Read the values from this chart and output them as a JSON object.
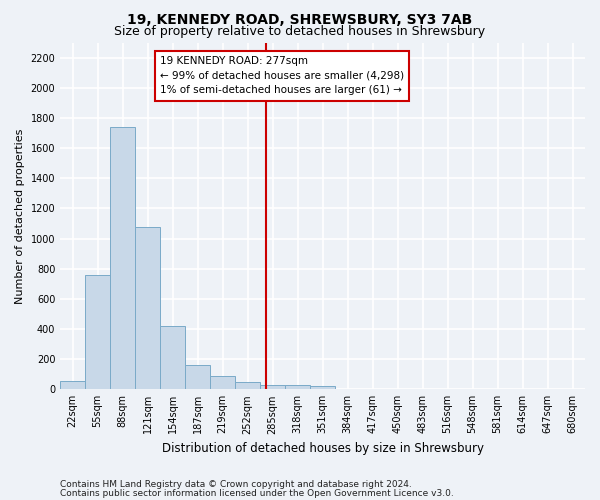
{
  "title": "19, KENNEDY ROAD, SHREWSBURY, SY3 7AB",
  "subtitle": "Size of property relative to detached houses in Shrewsbury",
  "xlabel": "Distribution of detached houses by size in Shrewsbury",
  "ylabel": "Number of detached properties",
  "footnote1": "Contains HM Land Registry data © Crown copyright and database right 2024.",
  "footnote2": "Contains public sector information licensed under the Open Government Licence v3.0.",
  "bin_labels": [
    "22sqm",
    "55sqm",
    "88sqm",
    "121sqm",
    "154sqm",
    "187sqm",
    "219sqm",
    "252sqm",
    "285sqm",
    "318sqm",
    "351sqm",
    "384sqm",
    "417sqm",
    "450sqm",
    "483sqm",
    "516sqm",
    "548sqm",
    "581sqm",
    "614sqm",
    "647sqm",
    "680sqm"
  ],
  "bar_heights": [
    55,
    760,
    1740,
    1075,
    420,
    160,
    85,
    50,
    30,
    30,
    20,
    0,
    0,
    0,
    0,
    0,
    0,
    0,
    0,
    0,
    0
  ],
  "bar_color": "#c8d8e8",
  "bar_edge_color": "#7aaac8",
  "vline_color": "#cc0000",
  "annotation_line1": "19 KENNEDY ROAD: 277sqm",
  "annotation_line2": "← 99% of detached houses are smaller (4,298)",
  "annotation_line3": "1% of semi-detached houses are larger (61) →",
  "ylim": [
    0,
    2300
  ],
  "yticks": [
    0,
    200,
    400,
    600,
    800,
    1000,
    1200,
    1400,
    1600,
    1800,
    2000,
    2200
  ],
  "background_color": "#eef2f7",
  "grid_color": "#ffffff",
  "title_fontsize": 10,
  "subtitle_fontsize": 9,
  "xlabel_fontsize": 8.5,
  "ylabel_fontsize": 8,
  "tick_fontsize": 7,
  "annot_fontsize": 7.5,
  "footnote_fontsize": 6.5,
  "vline_x_data": 7.73
}
